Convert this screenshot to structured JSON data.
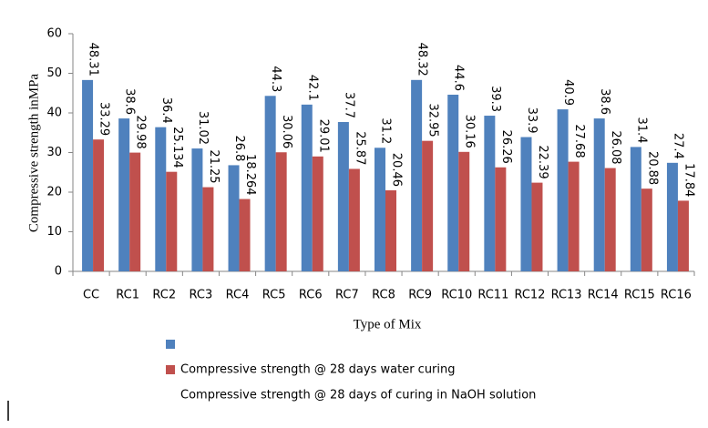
{
  "chart_data": {
    "type": "bar",
    "y_label": "Compressive strength inMPa",
    "x_label": "Type of Mix",
    "categories": [
      "CC",
      "RC1",
      "RC2",
      "RC3",
      "RC4",
      "RC5",
      "RC6",
      "RC7",
      "RC8",
      "RC9",
      "RC10",
      "RC11",
      "RC12",
      "RC13",
      "RC14",
      "RC15",
      "RC16"
    ],
    "series": [
      {
        "color": "#4f81bd",
        "values": [
          48.31,
          38.6,
          36.4,
          31.02,
          26.8,
          44.3,
          42.1,
          37.7,
          31.2,
          48.32,
          44.6,
          39.3,
          33.9,
          40.9,
          38.6,
          31.4,
          27.4
        ]
      },
      {
        "name": "Compressive strength @ 28 days water curing",
        "color": "#c0504d",
        "values": [
          33.29,
          29.98,
          25.134,
          21.25,
          18.264,
          30.06,
          29.01,
          25.87,
          20.46,
          32.95,
          30.16,
          26.26,
          22.39,
          27.68,
          26.08,
          20.88,
          17.84
        ]
      }
    ],
    "legend_note": "Compressive strength @ 28 days of curing in NaOH solution",
    "ylim": [
      0,
      60
    ],
    "yticks": [
      0,
      10,
      20,
      30,
      40,
      50,
      60
    ],
    "grid": false,
    "data_labels": true
  }
}
